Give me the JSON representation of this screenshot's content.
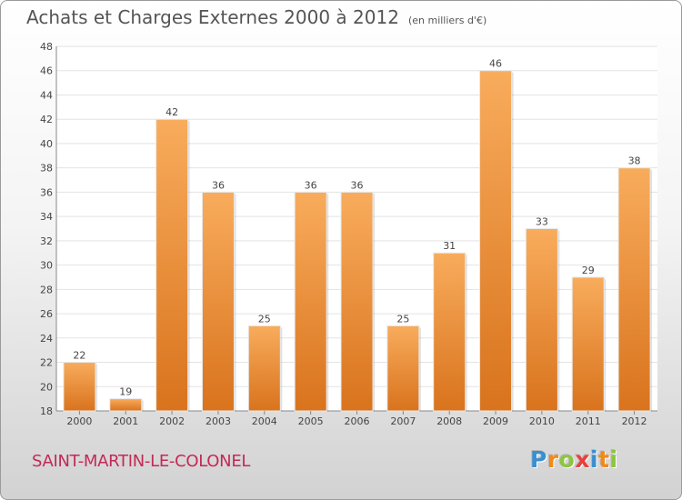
{
  "header": {
    "title": "Achats et Charges Externes 2000 à 2012",
    "subtitle": "(en milliers d'€)"
  },
  "commune": "SAINT-MARTIN-LE-COLONEL",
  "brand": {
    "name": "Proxiti",
    "letters": [
      {
        "ch": "P",
        "color": "#3a8fd0"
      },
      {
        "ch": "r",
        "color": "#f08a1c"
      },
      {
        "ch": "o",
        "color": "#8cc63f"
      },
      {
        "ch": "x",
        "color": "#e8413c"
      },
      {
        "ch": "i",
        "color": "#3a8fd0"
      },
      {
        "ch": "t",
        "color": "#f08a1c"
      },
      {
        "ch": "i",
        "color": "#8cc63f"
      }
    ]
  },
  "colors": {
    "bar_top": "#f8ac5c",
    "bar_bottom": "#d9731d",
    "grid": "#e3e3e3",
    "axis_text": "#444444",
    "title_text": "#555555",
    "commune_text": "#c22a56"
  },
  "chart_data": {
    "type": "bar",
    "categories": [
      "2000",
      "2001",
      "2002",
      "2003",
      "2004",
      "2005",
      "2006",
      "2007",
      "2008",
      "2009",
      "2010",
      "2011",
      "2012"
    ],
    "values": [
      22,
      19,
      42,
      36,
      25,
      36,
      36,
      25,
      31,
      46,
      33,
      29,
      38
    ],
    "title": "Achats et Charges Externes 2000 à 2012",
    "subtitle": "(en milliers d'€)",
    "ylim": [
      18,
      48
    ],
    "yticks": [
      18,
      20,
      22,
      24,
      26,
      28,
      30,
      32,
      34,
      36,
      38,
      40,
      42,
      44,
      46,
      48
    ],
    "grid": true,
    "data_labels": true
  }
}
